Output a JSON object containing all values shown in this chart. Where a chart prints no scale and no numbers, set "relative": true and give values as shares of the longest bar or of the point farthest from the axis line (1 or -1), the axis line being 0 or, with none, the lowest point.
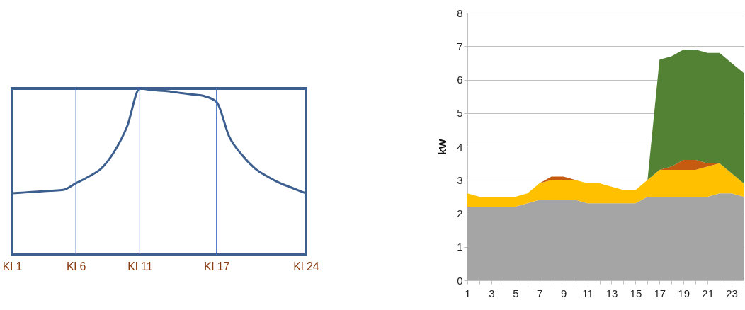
{
  "chart_data": [
    {
      "type": "line",
      "relative": true,
      "tick_labels": "x",
      "categories": [
        "Kl 1",
        null,
        null,
        null,
        null,
        "Kl 6",
        null,
        null,
        null,
        null,
        "Kl 11",
        null,
        null,
        null,
        null,
        null,
        "Kl 17",
        null,
        null,
        null,
        null,
        null,
        null,
        "Kl 24"
      ],
      "series": [
        {
          "color": "#3d5f8f",
          "values": [
            0.37,
            0.375,
            0.38,
            0.385,
            0.39,
            0.43,
            0.47,
            0.52,
            0.62,
            0.77,
            1,
            0.99,
            0.985,
            0.975,
            0.965,
            0.955,
            0.92,
            0.71,
            0.6,
            0.52,
            0.47,
            0.43,
            0.4,
            0.37
          ]
        }
      ],
      "ref_lines": [
        {
          "axis": "x",
          "value": "Kl 6",
          "color": "#4472c4"
        },
        {
          "axis": "x",
          "value": "Kl 11",
          "color": "#4472c4"
        },
        {
          "axis": "x",
          "value": "Kl 17",
          "color": "#4472c4"
        }
      ]
    },
    {
      "type": "area",
      "stacked": true,
      "ylabel": "kW",
      "grid": "y",
      "xlim": [
        1,
        24
      ],
      "ylim": [
        0,
        8
      ],
      "yticks": [
        0,
        1,
        2,
        3,
        4,
        5,
        6,
        7,
        8
      ],
      "xticks": [
        1,
        {
          "value": 2,
          "label": null
        },
        3,
        {
          "value": 4,
          "label": null
        },
        5,
        {
          "value": 6,
          "label": null
        },
        7,
        {
          "value": 8,
          "label": null
        },
        9,
        {
          "value": 10,
          "label": null
        },
        11,
        {
          "value": 12,
          "label": null
        },
        13,
        {
          "value": 14,
          "label": null
        },
        15,
        {
          "value": 16,
          "label": null
        },
        17,
        {
          "value": 18,
          "label": null
        },
        19,
        {
          "value": 20,
          "label": null
        },
        21,
        {
          "value": 22,
          "label": null
        },
        23,
        {
          "value": 24,
          "label": null
        }
      ],
      "x": [
        1,
        2,
        3,
        4,
        5,
        6,
        7,
        8,
        9,
        10,
        11,
        12,
        13,
        14,
        15,
        16,
        17,
        18,
        19,
        20,
        21,
        22,
        23,
        24
      ],
      "series": [
        {
          "color": "#a5a5a5",
          "values": [
            2.2,
            2.2,
            2.2,
            2.2,
            2.2,
            2.3,
            2.4,
            2.4,
            2.4,
            2.4,
            2.3,
            2.3,
            2.3,
            2.3,
            2.3,
            2.5,
            2.5,
            2.5,
            2.5,
            2.5,
            2.5,
            2.6,
            2.6,
            2.5
          ]
        },
        {
          "color": "#ffc000",
          "values": [
            0.4,
            0.3,
            0.3,
            0.3,
            0.3,
            0.3,
            0.5,
            0.6,
            0.6,
            0.6,
            0.6,
            0.6,
            0.5,
            0.4,
            0.4,
            0.5,
            0.8,
            0.8,
            0.8,
            0.8,
            0.9,
            0.9,
            0.6,
            0.4
          ]
        },
        {
          "color": "#c55a11",
          "values": [
            0,
            0,
            0,
            0,
            0,
            0,
            0,
            0.1,
            0.1,
            0,
            0,
            0,
            0,
            0,
            0,
            0,
            0,
            0.1,
            0.3,
            0.3,
            0.1,
            0,
            0,
            0
          ]
        },
        {
          "color": "#548235",
          "values": [
            0,
            0,
            0,
            0,
            0,
            0,
            0,
            0,
            0,
            0,
            0,
            0,
            0,
            0,
            0,
            0,
            3.3,
            3.3,
            3.3,
            3.3,
            3.3,
            3.3,
            3.3,
            3.3
          ]
        }
      ]
    }
  ]
}
